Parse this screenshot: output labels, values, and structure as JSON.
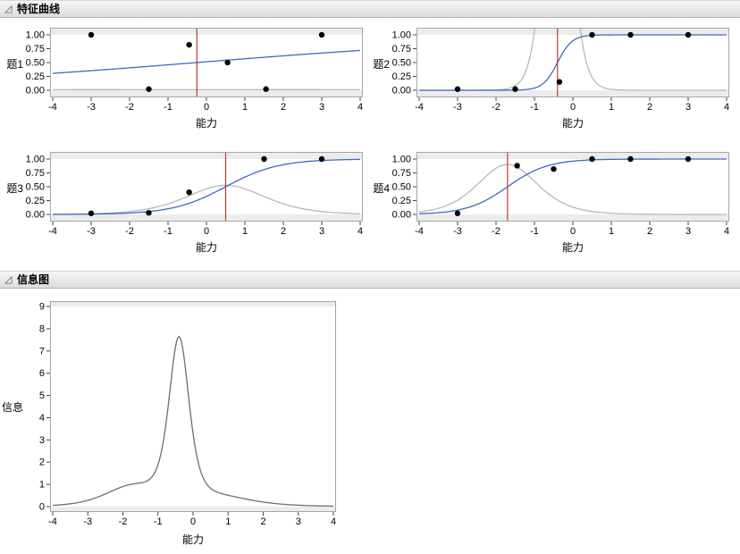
{
  "colors": {
    "header_gradient_top": "#f6f6f6",
    "header_gradient_bottom": "#dcdcdc",
    "header_border": "#b0b0b0",
    "frame_border": "#a6a6a6",
    "margin_band": "#ececec",
    "icc_curve": "#3a6bc0",
    "item_information_curve": "#b8b8b8",
    "total_information_curve": "#6e6e6e",
    "ability_reference_line": "#c0392b",
    "data_point": "#000000",
    "tick": "#444444",
    "text": "#000000"
  },
  "sections": {
    "characteristic_curves": {
      "title": "特征曲线"
    },
    "information_plot": {
      "title": "信息图"
    }
  },
  "chart_data": [
    {
      "type": "line",
      "item_label": "题1",
      "xlabel": "能力",
      "xlim": [
        -4,
        4
      ],
      "ylim": [
        0,
        1
      ],
      "xticks": [
        -4,
        -3,
        -2,
        -1,
        0,
        1,
        2,
        3,
        4
      ],
      "xtick_labels": [
        "-4",
        "-3",
        "-2",
        "-1",
        "0",
        "1",
        "2",
        "3",
        "4"
      ],
      "yticks": [
        0,
        0.25,
        0.5,
        0.75,
        1
      ],
      "ytick_labels": [
        "0.00",
        "0.25",
        "0.50",
        "0.75",
        "1.00"
      ],
      "curves": [
        {
          "kind": "item_information",
          "name": "item-information-curve",
          "a": 0.22,
          "b": -0.25
        },
        {
          "kind": "logistic",
          "name": "item-characteristic-curve",
          "a": 0.22,
          "b": -0.25
        }
      ],
      "ability_line_x": -0.25,
      "dots": [
        [
          -3,
          1.0
        ],
        [
          -1.5,
          0.02
        ],
        [
          -0.45,
          0.82
        ],
        [
          0.55,
          0.5
        ],
        [
          1.55,
          0.02
        ],
        [
          3,
          1.0
        ]
      ]
    },
    {
      "type": "line",
      "item_label": "题2",
      "xlabel": "能力",
      "xlim": [
        -4,
        4
      ],
      "ylim": [
        0,
        1
      ],
      "xticks": [
        -4,
        -3,
        -2,
        -1,
        0,
        1,
        2,
        3,
        4
      ],
      "xtick_labels": [
        "-4",
        "-3",
        "-2",
        "-1",
        "0",
        "1",
        "2",
        "3",
        "4"
      ],
      "yticks": [
        0,
        0.25,
        0.5,
        0.75,
        1
      ],
      "ytick_labels": [
        "0.00",
        "0.25",
        "0.50",
        "0.75",
        "1.00"
      ],
      "curves": [
        {
          "kind": "item_information",
          "name": "item-information-curve",
          "a": 5.3,
          "b": -0.4
        },
        {
          "kind": "logistic",
          "name": "item-characteristic-curve",
          "a": 5.3,
          "b": -0.4
        }
      ],
      "ability_line_x": -0.4,
      "dots": [
        [
          -3,
          0.02
        ],
        [
          -1.5,
          0.02
        ],
        [
          -0.35,
          0.15
        ],
        [
          0.5,
          1.0
        ],
        [
          1.5,
          1.0
        ],
        [
          3,
          1.0
        ]
      ]
    },
    {
      "type": "line",
      "item_label": "题3",
      "xlabel": "能力",
      "xlim": [
        -4,
        4
      ],
      "ylim": [
        0,
        1
      ],
      "xticks": [
        -4,
        -3,
        -2,
        -1,
        0,
        1,
        2,
        3,
        4
      ],
      "xtick_labels": [
        "-4",
        "-3",
        "-2",
        "-1",
        "0",
        "1",
        "2",
        "3",
        "4"
      ],
      "yticks": [
        0,
        0.25,
        0.5,
        0.75,
        1
      ],
      "ytick_labels": [
        "0.00",
        "0.25",
        "0.50",
        "0.75",
        "1.00"
      ],
      "curves": [
        {
          "kind": "item_information",
          "name": "item-information-curve",
          "a": 1.45,
          "b": 0.5
        },
        {
          "kind": "logistic",
          "name": "item-characteristic-curve",
          "a": 1.45,
          "b": 0.5
        }
      ],
      "ability_line_x": 0.5,
      "dots": [
        [
          -3,
          0.02
        ],
        [
          -1.5,
          0.03
        ],
        [
          -0.45,
          0.4
        ],
        [
          1.5,
          1.0
        ],
        [
          3,
          1.0
        ]
      ]
    },
    {
      "type": "line",
      "item_label": "题4",
      "xlabel": "能力",
      "xlim": [
        -4,
        4
      ],
      "ylim": [
        0,
        1
      ],
      "xticks": [
        -4,
        -3,
        -2,
        -1,
        0,
        1,
        2,
        3,
        4
      ],
      "xtick_labels": [
        "-4",
        "-3",
        "-2",
        "-1",
        "0",
        "1",
        "2",
        "3",
        "4"
      ],
      "yticks": [
        0,
        0.25,
        0.5,
        0.75,
        1
      ],
      "ytick_labels": [
        "0.00",
        "0.25",
        "0.50",
        "0.75",
        "1.00"
      ],
      "curves": [
        {
          "kind": "item_information",
          "name": "item-information-curve",
          "a": 1.9,
          "b": -1.7
        },
        {
          "kind": "logistic",
          "name": "item-characteristic-curve",
          "a": 1.9,
          "b": -1.7
        }
      ],
      "ability_line_x": -1.7,
      "dots": [
        [
          -3,
          0.02
        ],
        [
          -1.45,
          0.88
        ],
        [
          -0.5,
          0.82
        ],
        [
          0.5,
          1.0
        ],
        [
          1.5,
          1.0
        ],
        [
          3,
          1.0
        ]
      ]
    },
    {
      "type": "line",
      "item_label": "信息",
      "xlabel": "能力",
      "xlim": [
        -4,
        4
      ],
      "ylim": [
        0,
        9
      ],
      "xticks": [
        -4,
        -3,
        -2,
        -1,
        0,
        1,
        2,
        3,
        4
      ],
      "xtick_labels": [
        "-4",
        "-3",
        "-2",
        "-1",
        "0",
        "1",
        "2",
        "3",
        "4"
      ],
      "yticks": [
        0,
        1,
        2,
        3,
        4,
        5,
        6,
        7,
        8,
        9
      ],
      "ytick_labels": [
        "0",
        "1",
        "2",
        "3",
        "4",
        "5",
        "6",
        "7",
        "8",
        "9"
      ],
      "curves": [
        {
          "kind": "total_information",
          "name": "test-information-curve",
          "items": [
            {
              "a": 0.22,
              "b": -0.25
            },
            {
              "a": 5.3,
              "b": -0.4
            },
            {
              "a": 1.45,
              "b": 0.5
            },
            {
              "a": 1.9,
              "b": -1.7
            }
          ]
        }
      ],
      "ability_line_x": null,
      "peak": {
        "x": -0.4,
        "y": 7.65
      }
    }
  ]
}
